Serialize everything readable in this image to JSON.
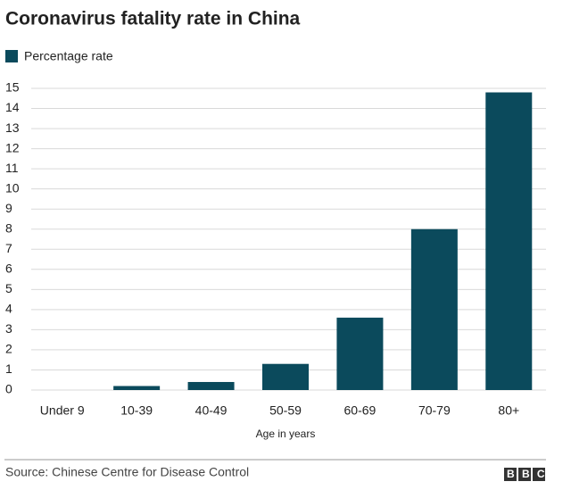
{
  "chart_data": {
    "type": "bar",
    "title": "Coronavirus fatality rate in China",
    "legend": "Percentage rate",
    "legend_position": "top-left",
    "x_label": "Age in years",
    "categories": [
      "Under 9",
      "10-39",
      "40-49",
      "50-59",
      "60-69",
      "70-79",
      "80+"
    ],
    "values": [
      0,
      0.2,
      0.4,
      1.3,
      3.6,
      8.0,
      14.8
    ],
    "color": "#0b4a5c",
    "ylim": [
      0,
      15
    ],
    "yticks": [
      0,
      1,
      2,
      3,
      4,
      5,
      6,
      7,
      8,
      9,
      10,
      11,
      12,
      13,
      14,
      15
    ],
    "grid": true,
    "source": "Source: Chinese Centre for Disease Control",
    "logo": "BBC"
  }
}
